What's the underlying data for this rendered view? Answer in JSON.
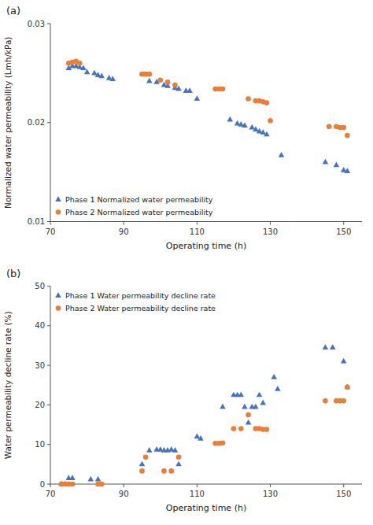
{
  "chart_data": [
    {
      "type": "scatter",
      "title": "(a)",
      "x_label": "Operating time (h)",
      "y_label": "Normalized water permeability (Lmh/kPa)",
      "xlim": [
        70,
        155
      ],
      "ylim": [
        0.01,
        0.03
      ],
      "xticks": [
        70,
        90,
        110,
        130,
        150
      ],
      "yticks": [
        0.01,
        0.02,
        0.03
      ],
      "grid": false,
      "legend": "lower left",
      "series": [
        {
          "name": "Phase 1 Normalized water permeability",
          "color": "#4472C4",
          "marker": "triangle",
          "x": [
            75,
            76,
            77,
            78,
            79,
            80,
            82,
            83,
            84,
            86,
            87,
            97,
            99,
            101,
            102,
            104,
            105,
            107,
            108,
            110,
            119,
            121,
            122,
            123,
            125,
            126,
            127,
            128,
            129,
            133,
            145,
            148,
            150,
            151
          ],
          "values": [
            0.0255,
            0.0257,
            0.0257,
            0.0256,
            0.0255,
            0.0251,
            0.025,
            0.0248,
            0.0247,
            0.0245,
            0.0244,
            0.0242,
            0.0241,
            0.0238,
            0.0237,
            0.0235,
            0.0234,
            0.0232,
            0.0232,
            0.0224,
            0.0203,
            0.0199,
            0.0198,
            0.0197,
            0.0195,
            0.0193,
            0.0191,
            0.019,
            0.0188,
            0.0167,
            0.016,
            0.0157,
            0.0152,
            0.0151
          ]
        },
        {
          "name": "Phase 2 Normalized water permeability",
          "color": "#ED7D31",
          "marker": "circle",
          "x": [
            75,
            76,
            77,
            78,
            95,
            96,
            97,
            100,
            102,
            104,
            115,
            116,
            117,
            124,
            126,
            127,
            128,
            129,
            130,
            146,
            148,
            149,
            150,
            151
          ],
          "values": [
            0.026,
            0.0261,
            0.0262,
            0.026,
            0.0249,
            0.0249,
            0.0249,
            0.0243,
            0.0241,
            0.0238,
            0.0234,
            0.0234,
            0.0234,
            0.0224,
            0.0222,
            0.0222,
            0.0221,
            0.022,
            0.0202,
            0.0196,
            0.0196,
            0.0195,
            0.0195,
            0.0187
          ]
        }
      ]
    },
    {
      "type": "scatter",
      "title": "(b)",
      "x_label": "Operating time (h)",
      "y_label": "Water permeability decline rate (%)",
      "xlim": [
        70,
        155
      ],
      "ylim": [
        0,
        50
      ],
      "xticks": [
        70,
        90,
        110,
        130,
        150
      ],
      "yticks": [
        0,
        10,
        20,
        30,
        40,
        50
      ],
      "grid": false,
      "legend": "upper left",
      "series": [
        {
          "name": "Phase 1 Water permeability decline rate",
          "color": "#4472C4",
          "marker": "triangle",
          "x": [
            73,
            74,
            75,
            76,
            81,
            83,
            95,
            97,
            99,
            100,
            101,
            102,
            103,
            104,
            105,
            110,
            111,
            117,
            120,
            121,
            122,
            123,
            124,
            125,
            126,
            127,
            128,
            131,
            132,
            145,
            147,
            150,
            151
          ],
          "values": [
            0.0,
            0.0,
            1.5,
            1.5,
            1.2,
            1.2,
            5.0,
            8.5,
            8.7,
            8.7,
            8.5,
            8.5,
            8.7,
            8.5,
            5.0,
            12.0,
            11.5,
            19.5,
            22.5,
            22.5,
            22.5,
            19.5,
            15.5,
            19.5,
            19.5,
            22.5,
            20.5,
            27.0,
            24.0,
            34.5,
            34.5,
            31.0,
            24.5
          ]
        },
        {
          "name": "Phase 2 Water permeability decline rate",
          "color": "#ED7D31",
          "marker": "circle",
          "x": [
            73,
            74,
            75,
            76,
            83,
            84,
            95,
            96,
            101,
            103,
            105,
            115,
            116,
            117,
            120,
            122,
            124,
            126,
            127,
            128,
            129,
            145,
            148,
            149,
            150,
            151
          ],
          "values": [
            0.0,
            0.0,
            0.0,
            0.0,
            0.0,
            0.0,
            3.3,
            6.8,
            3.3,
            3.3,
            6.8,
            10.3,
            10.3,
            10.4,
            14.0,
            14.0,
            17.5,
            14.0,
            14.0,
            13.8,
            13.8,
            21.0,
            21.0,
            21.0,
            21.0,
            24.5
          ]
        }
      ]
    }
  ]
}
